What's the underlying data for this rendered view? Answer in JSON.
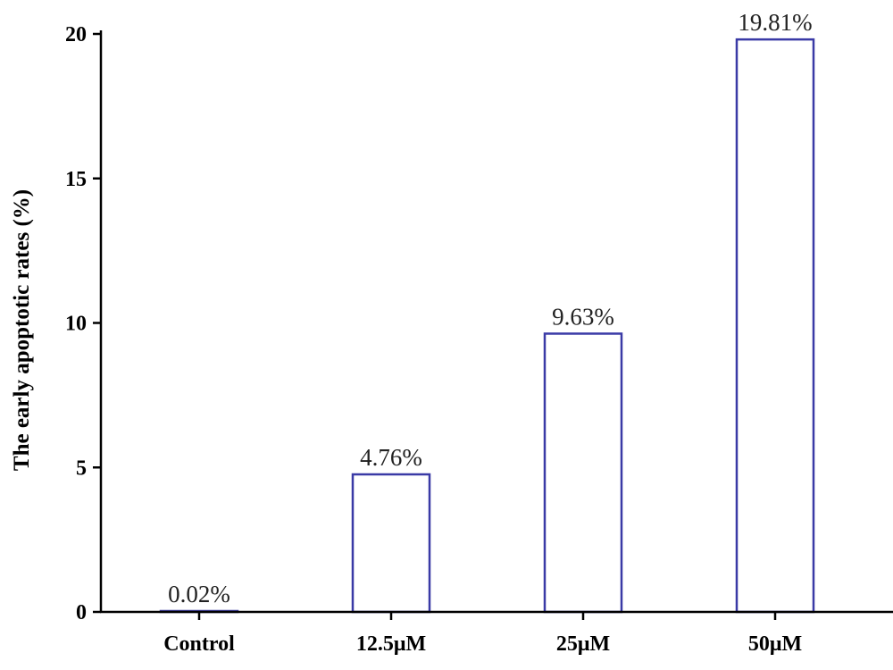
{
  "chart_data": {
    "type": "bar",
    "categories": [
      "Control",
      "12.5μM",
      "25μM",
      "50μM"
    ],
    "values": [
      0.02,
      4.76,
      9.63,
      19.81
    ],
    "data_labels": [
      "0.02%",
      "4.76%",
      "9.63%",
      "19.81%"
    ],
    "title": "",
    "xlabel": "",
    "ylabel": "The early apoptotic rates (%)",
    "ylim": [
      0,
      20
    ],
    "yticks": [
      0,
      5,
      10,
      15,
      20
    ],
    "grid": false,
    "legend": "none",
    "bar_fill": "#ffffff",
    "bar_stroke": "#3a3aa6",
    "axis_color": "#000000"
  }
}
